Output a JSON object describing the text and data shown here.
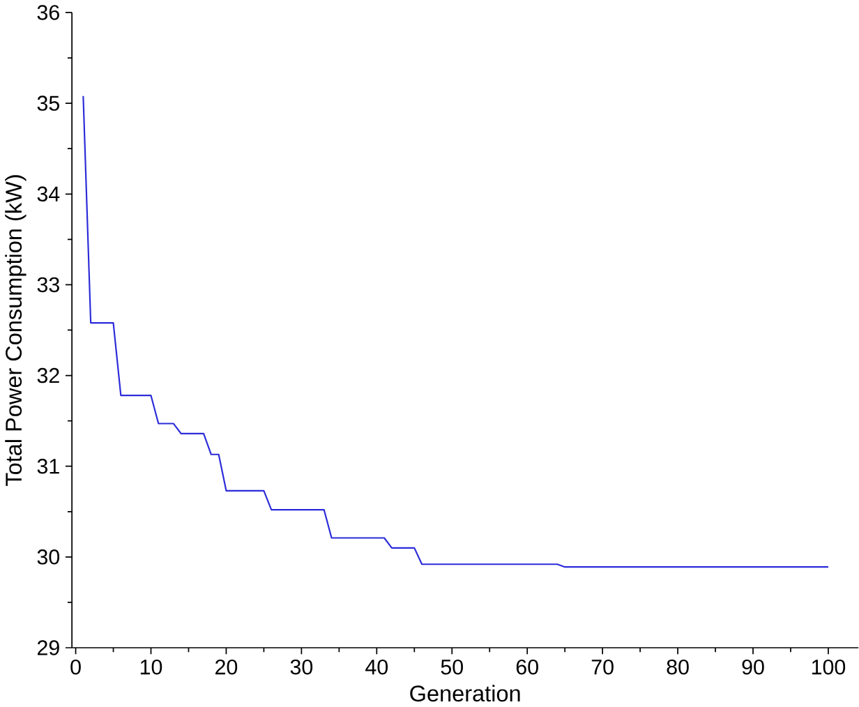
{
  "chart_data": {
    "type": "line",
    "xlabel": "Generation",
    "ylabel": "Total Power Consumption (kW)",
    "x": [
      1,
      2,
      5,
      6,
      10,
      11,
      13,
      14,
      17,
      18,
      19,
      20,
      25,
      26,
      33,
      34,
      41,
      42,
      45,
      46,
      64,
      65,
      100
    ],
    "series": [
      {
        "color": "#2b2bd9",
        "values": [
          35.08,
          32.58,
          32.58,
          31.78,
          31.78,
          31.47,
          31.47,
          31.36,
          31.36,
          31.13,
          31.13,
          30.73,
          30.73,
          30.52,
          30.52,
          30.21,
          30.21,
          30.1,
          30.1,
          29.92,
          29.92,
          29.89,
          29.89
        ]
      }
    ],
    "xlim": [
      -0.5,
      104
    ],
    "ylim": [
      29,
      36
    ],
    "xticks": [
      0,
      10,
      20,
      30,
      40,
      50,
      60,
      70,
      80,
      90,
      100
    ],
    "yticks": [
      29,
      30,
      31,
      32,
      33,
      34,
      35,
      36
    ],
    "grid": false,
    "marker": "none",
    "line_style": "solid"
  }
}
